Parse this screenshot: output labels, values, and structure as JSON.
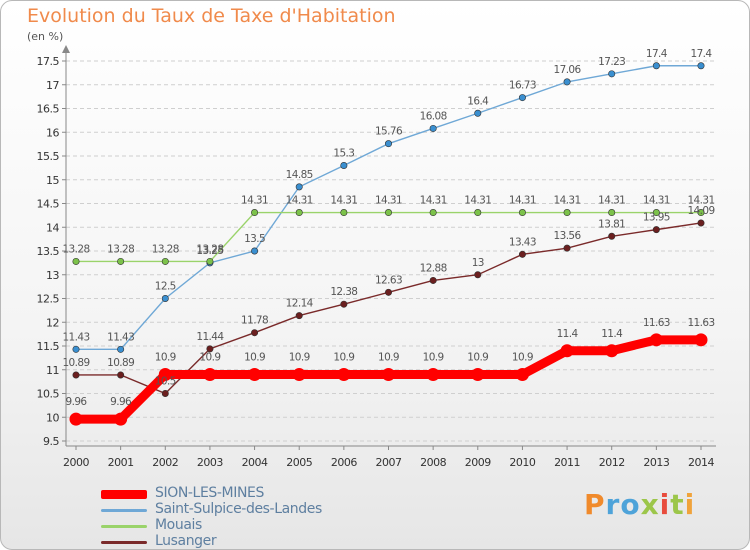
{
  "header": {
    "title": "Evolution du Taux de Taxe d'Habitation",
    "unit": "(en %)"
  },
  "logo": {
    "text": "Proxiti"
  },
  "colors": {
    "grid": "#cfcfcf",
    "axis": "#888888",
    "tick_text": "#333333",
    "label_text": "#555555",
    "logo_letters": [
      "#f08a2b",
      "#4ea3d9",
      "#4ea3d9",
      "#9cc64a",
      "#e84c3d",
      "#9cc64a",
      "#f0a33b"
    ]
  },
  "chart_data": {
    "type": "line",
    "x": [
      2000,
      2001,
      2002,
      2003,
      2004,
      2005,
      2006,
      2007,
      2008,
      2009,
      2010,
      2011,
      2012,
      2013,
      2014
    ],
    "ylim": [
      9.5,
      17.5
    ],
    "yticks": [
      9.5,
      10,
      10.5,
      11,
      11.5,
      12,
      12.5,
      13,
      13.5,
      14,
      14.5,
      15,
      15.5,
      16,
      16.5,
      17,
      17.5
    ],
    "grid": "horizontal",
    "legend_position": "bottom-left",
    "series": [
      {
        "name": "SION-LES-MINES",
        "color": "#ff0000",
        "emphasis": true,
        "values": [
          9.96,
          9.96,
          10.9,
          10.9,
          10.9,
          10.9,
          10.9,
          10.9,
          10.9,
          10.9,
          10.9,
          11.4,
          11.4,
          11.63,
          11.63
        ]
      },
      {
        "name": "Saint-Sulpice-des-Landes",
        "color": "#6fa8d6",
        "marker_color": "#3a8fd0",
        "values": [
          11.43,
          11.43,
          12.5,
          13.25,
          13.5,
          14.85,
          15.3,
          15.76,
          16.08,
          16.4,
          16.73,
          17.06,
          17.23,
          17.4,
          17.4
        ]
      },
      {
        "name": "Mouais",
        "color": "#9ad36a",
        "marker_color": "#7cc24a",
        "values": [
          13.28,
          13.28,
          13.28,
          13.28,
          14.31,
          14.31,
          14.31,
          14.31,
          14.31,
          14.31,
          14.31,
          14.31,
          14.31,
          14.31,
          14.31
        ]
      },
      {
        "name": "Lusanger",
        "color": "#7a2a2a",
        "marker_color": "#6b1f1f",
        "values": [
          10.89,
          10.89,
          10.5,
          11.44,
          11.78,
          12.14,
          12.38,
          12.63,
          12.88,
          13,
          13.43,
          13.56,
          13.81,
          13.95,
          14.09
        ]
      }
    ],
    "data_labels": {
      "SION-LES-MINES": [
        "9.96",
        "9.96",
        "10.9",
        "10.9",
        "10.9",
        "10.9",
        "10.9",
        "10.9",
        "10.9",
        "10.9",
        "10.9",
        "11.4",
        "11.4",
        "11.63",
        "11.63"
      ],
      "Saint-Sulpice-des-Landes": [
        "11.43",
        "11.43",
        "12.5",
        "13.25",
        "13.5",
        "14.85",
        "15.3",
        "15.76",
        "16.08",
        "16.4",
        "16.73",
        "17.06",
        "17.23",
        "17.4",
        "17.4"
      ],
      "Mouais": [
        "13.28",
        "13.28",
        "13.28",
        "13.28",
        "14.31",
        "14.31",
        "14.31",
        "14.31",
        "14.31",
        "14.31",
        "14.31",
        "14.31",
        "14.31",
        "14.31",
        "14.31"
      ],
      "Lusanger": [
        "10.89",
        "10.89",
        "10.5",
        "11.44",
        "11.78",
        "12.14",
        "12.38",
        "12.63",
        "12.88",
        "13",
        "13.43",
        "13.56",
        "13.81",
        "13.95",
        "14.09"
      ]
    }
  }
}
